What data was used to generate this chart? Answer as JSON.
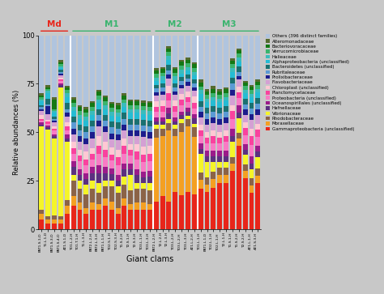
{
  "families": [
    "Gammaproteobacteria (unclassified)",
    "Moraxellaceae",
    "Rhodobacteraceae",
    "Vibrionaceae",
    "Hafnellaceae",
    "Oceanospirillales (unclassified)",
    "Proteobacteria (unclassified)",
    "Planctomycetaceae",
    "Chloroplast (unclassified)",
    "Flavobacteriaceae",
    "Prolixibacteraceae",
    "Rubritaleaceae",
    "Bacteroidetes (unclassified)",
    "Alphaproteobacteria (unclassified)",
    "Halieaceae",
    "Verrucomicrobiaceae",
    "Bacteriovoracaceae",
    "Alteromonadaceae",
    "Others (396 distinct families)"
  ],
  "colors": [
    "#e8251a",
    "#f4a022",
    "#8B6347",
    "#f5f528",
    "#5b3080",
    "#9b1b8a",
    "#f97bc5",
    "#f9429e",
    "#ffc8d4",
    "#d4a0d4",
    "#1c1c8c",
    "#5b9bd5",
    "#1a7070",
    "#25bcd4",
    "#3abcbc",
    "#3ab46e",
    "#147814",
    "#556b2f",
    "#b0c4de"
  ],
  "x_labels_Md": [
    "PAT1.S.1-D",
    "T1.L.1-D",
    "PAT1.S.3-D",
    "PAT1.S.4-D",
    "AT1.S.1-D"
  ],
  "x_labels_M1": [
    "TO1.L.2-H",
    "TO1.T.1-H",
    "T1.L.3-H",
    "PAT2.L.2-H",
    "PAT2.L.3-H",
    "PAT1.L.1-H",
    "TO2.S.1-H",
    "TO2.S.3-H",
    "T1.S.2-H",
    "T2.S.1-H",
    "T2.S.3-H",
    "TO3.L.1-H",
    "TO3.L.3-H"
  ],
  "x_labels_M2": [
    "PAT2.L.2-H",
    "T2.L.2-H",
    "T2.L.3-H",
    "TO3.L.2-H",
    "TO3.L.2-H ",
    "TO3.L.3-H",
    "AT1.L.2-H"
  ],
  "x_labels_M3": [
    "TO1.L.1-H",
    "PAT1.L.1-D",
    "TO2.L.1-H",
    "TO2.L.1-H ",
    "T2.L.1-H",
    "T1.S.1-H",
    "T1.S.2-H",
    "T2.S.2-H",
    "AT1.L.1-H",
    "AT1.S.3-H"
  ],
  "group_labels": [
    "Md",
    "M1",
    "M2",
    "M3"
  ],
  "group_colors": [
    "#e8251a",
    "#3ab46e",
    "#3ab46e",
    "#3ab46e"
  ],
  "xlabel": "Giant clams",
  "ylabel": "Relative abundances (%)",
  "bg_color": "#c8c8c8",
  "bar_width": 0.75
}
